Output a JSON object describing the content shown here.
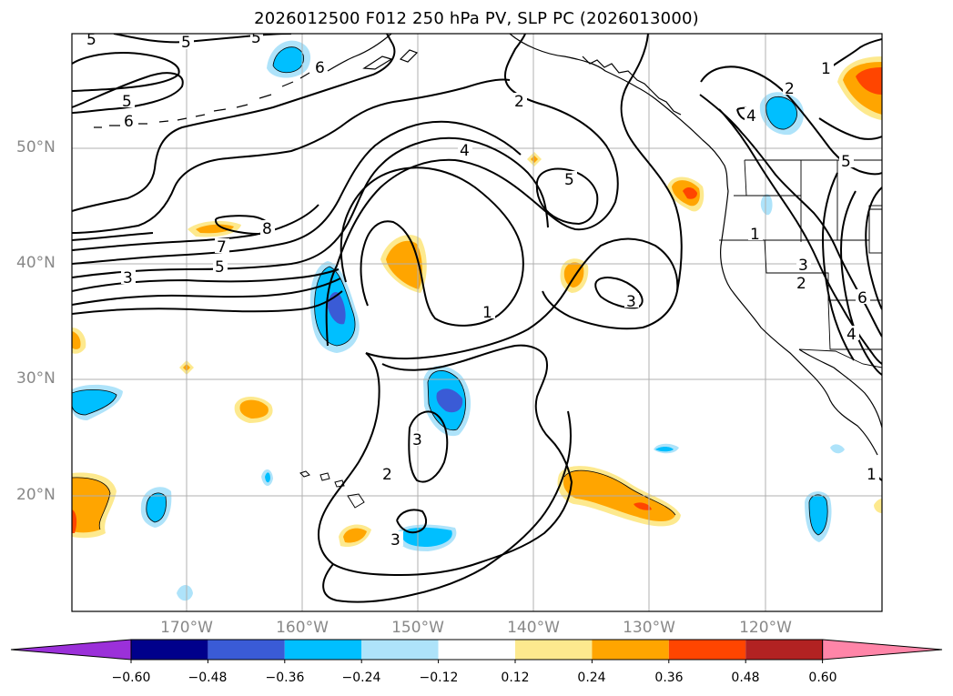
{
  "title": "2026012500 F012 250 hPa PV, SLP PC (2026013000)",
  "latitude_labels": [
    "50°N",
    "40°N",
    "30°N",
    "20°N"
  ],
  "longitude_labels": [
    "170°W",
    "160°W",
    "150°W",
    "140°W",
    "130°W",
    "120°W"
  ],
  "colorbar": {
    "ticks": [
      "−0.60",
      "−0.48",
      "−0.36",
      "−0.24",
      "−0.12",
      "0.12",
      "0.24",
      "0.36",
      "0.48",
      "0.60"
    ],
    "colors": [
      "#9b30d9",
      "#00008b",
      "#3a5bd6",
      "#00bfff",
      "#aee3fa",
      "#ffffff",
      "#fde98e",
      "#ffa500",
      "#ff4500",
      "#b22222",
      "#ff85a8"
    ]
  },
  "contour_labels": [
    "5",
    "5",
    "5",
    "6",
    "5",
    "6",
    "8",
    "7",
    "5",
    "3",
    "2",
    "4",
    "5",
    "1",
    "3",
    "3",
    "3",
    "2",
    "1",
    "2",
    "4",
    "5",
    "1",
    "3",
    "2",
    "6",
    "4",
    "1"
  ],
  "legend_colors": {
    "contour": "#000000",
    "coast": "#000000",
    "grid": "#b0b0b0"
  }
}
